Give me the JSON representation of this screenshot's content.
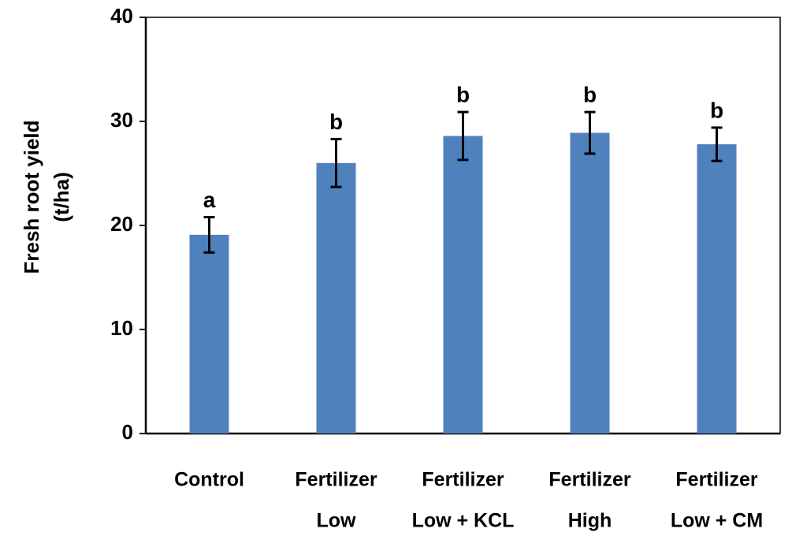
{
  "chart_data": {
    "type": "bar",
    "ylabel": [
      "Fresh root yield",
      "(t/ha)"
    ],
    "categories": [
      [
        "Control"
      ],
      [
        "Fertilizer",
        "Low"
      ],
      [
        "Fertilizer",
        "Low + KCL"
      ],
      [
        "Fertilizer",
        "High"
      ],
      [
        "Fertilizer",
        "Low + CM"
      ]
    ],
    "values": [
      19.1,
      26.0,
      28.6,
      28.9,
      27.8
    ],
    "errors": [
      1.7,
      2.3,
      2.3,
      2.0,
      1.6
    ],
    "annotations": [
      "a",
      "b",
      "b",
      "b",
      "b"
    ],
    "color": "#4f81bd",
    "ylim": [
      0,
      40
    ],
    "yticks": [
      0,
      10,
      20,
      30,
      40
    ],
    "grid": false
  }
}
